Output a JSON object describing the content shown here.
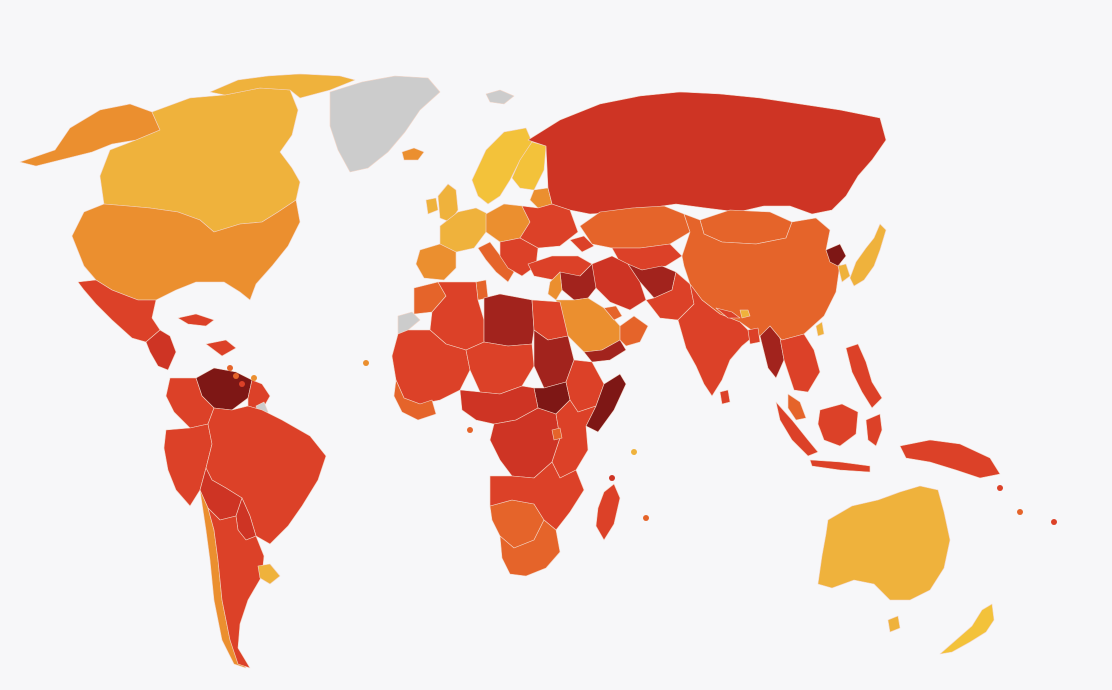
{
  "map": {
    "background": "#f7f7f9",
    "palette": {
      "very-clean": "#f3c23a",
      "clean": "#efb23c",
      "fairly-clean": "#eb8f2f",
      "moderate": "#e5642a",
      "corrupt": "#dc4128",
      "highly-corrupt": "#ce3424",
      "very-corrupt": "#a2231d",
      "extremely-corrupt": "#7e1715",
      "no-data": "#cccccc",
      "no-data-light": "#e2e2e4"
    },
    "regions": [
      {
        "id": "alaska",
        "cat": "fairly-clean"
      },
      {
        "id": "canada",
        "cat": "clean"
      },
      {
        "id": "canada-arctic",
        "cat": "clean"
      },
      {
        "id": "greenland",
        "cat": "no-data"
      },
      {
        "id": "svalbard",
        "cat": "no-data"
      },
      {
        "id": "iceland",
        "cat": "fairly-clean"
      },
      {
        "id": "usa",
        "cat": "fairly-clean"
      },
      {
        "id": "mexico",
        "cat": "corrupt"
      },
      {
        "id": "central-america",
        "cat": "highly-corrupt"
      },
      {
        "id": "cuba",
        "cat": "corrupt"
      },
      {
        "id": "hispaniola",
        "cat": "corrupt"
      },
      {
        "id": "venezuela",
        "cat": "extremely-corrupt"
      },
      {
        "id": "colombia",
        "cat": "corrupt"
      },
      {
        "id": "guianas",
        "cat": "corrupt"
      },
      {
        "id": "french-guiana",
        "cat": "no-data"
      },
      {
        "id": "brazil",
        "cat": "corrupt"
      },
      {
        "id": "peru-ecuador",
        "cat": "corrupt"
      },
      {
        "id": "bolivia",
        "cat": "highly-corrupt"
      },
      {
        "id": "paraguay",
        "cat": "highly-corrupt"
      },
      {
        "id": "chile",
        "cat": "fairly-clean"
      },
      {
        "id": "argentina",
        "cat": "corrupt"
      },
      {
        "id": "uruguay",
        "cat": "clean"
      },
      {
        "id": "scandinavia",
        "cat": "very-clean"
      },
      {
        "id": "finland",
        "cat": "very-clean"
      },
      {
        "id": "uk",
        "cat": "clean"
      },
      {
        "id": "ireland",
        "cat": "clean"
      },
      {
        "id": "west-europe",
        "cat": "clean"
      },
      {
        "id": "iberia",
        "cat": "fairly-clean"
      },
      {
        "id": "italy",
        "cat": "moderate"
      },
      {
        "id": "central-europe",
        "cat": "fairly-clean"
      },
      {
        "id": "east-europe",
        "cat": "corrupt"
      },
      {
        "id": "balkans",
        "cat": "corrupt"
      },
      {
        "id": "baltics",
        "cat": "fairly-clean"
      },
      {
        "id": "russia",
        "cat": "highly-corrupt"
      },
      {
        "id": "kazakhstan",
        "cat": "moderate"
      },
      {
        "id": "central-asia",
        "cat": "corrupt"
      },
      {
        "id": "turkey",
        "cat": "corrupt"
      },
      {
        "id": "caucasus",
        "cat": "corrupt"
      },
      {
        "id": "mongolia",
        "cat": "moderate"
      },
      {
        "id": "china",
        "cat": "moderate"
      },
      {
        "id": "north-korea",
        "cat": "extremely-corrupt"
      },
      {
        "id": "korea",
        "cat": "clean"
      },
      {
        "id": "japan",
        "cat": "clean"
      },
      {
        "id": "taiwan",
        "cat": "clean"
      },
      {
        "id": "iran",
        "cat": "highly-corrupt"
      },
      {
        "id": "afghanistan",
        "cat": "very-corrupt"
      },
      {
        "id": "pakistan",
        "cat": "corrupt"
      },
      {
        "id": "iraq-syria",
        "cat": "very-corrupt"
      },
      {
        "id": "levant",
        "cat": "fairly-clean"
      },
      {
        "id": "saudi",
        "cat": "fairly-clean"
      },
      {
        "id": "gulf-states",
        "cat": "moderate"
      },
      {
        "id": "oman",
        "cat": "moderate"
      },
      {
        "id": "yemen",
        "cat": "very-corrupt"
      },
      {
        "id": "india",
        "cat": "corrupt"
      },
      {
        "id": "sri-lanka",
        "cat": "corrupt"
      },
      {
        "id": "nepal",
        "cat": "corrupt"
      },
      {
        "id": "bhutan",
        "cat": "clean"
      },
      {
        "id": "bangladesh",
        "cat": "corrupt"
      },
      {
        "id": "myanmar",
        "cat": "very-corrupt"
      },
      {
        "id": "indochina",
        "cat": "corrupt"
      },
      {
        "id": "malaysia",
        "cat": "moderate"
      },
      {
        "id": "sumatra",
        "cat": "corrupt"
      },
      {
        "id": "java",
        "cat": "corrupt"
      },
      {
        "id": "borneo",
        "cat": "corrupt"
      },
      {
        "id": "sulawesi",
        "cat": "corrupt"
      },
      {
        "id": "philippines",
        "cat": "corrupt"
      },
      {
        "id": "new-guinea",
        "cat": "corrupt"
      },
      {
        "id": "australia",
        "cat": "clean"
      },
      {
        "id": "tasmania",
        "cat": "clean"
      },
      {
        "id": "new-zealand",
        "cat": "very-clean"
      },
      {
        "id": "western-sahara",
        "cat": "no-data"
      },
      {
        "id": "morocco",
        "cat": "moderate"
      },
      {
        "id": "algeria",
        "cat": "corrupt"
      },
      {
        "id": "tunisia",
        "cat": "moderate"
      },
      {
        "id": "libya",
        "cat": "very-corrupt"
      },
      {
        "id": "egypt",
        "cat": "corrupt"
      },
      {
        "id": "west-africa",
        "cat": "corrupt"
      },
      {
        "id": "senegal-ghana",
        "cat": "moderate"
      },
      {
        "id": "niger-chad",
        "cat": "corrupt"
      },
      {
        "id": "sudan",
        "cat": "very-corrupt"
      },
      {
        "id": "south-sudan",
        "cat": "extremely-corrupt"
      },
      {
        "id": "eritrea-ethiopia",
        "cat": "corrupt"
      },
      {
        "id": "somalia",
        "cat": "extremely-corrupt"
      },
      {
        "id": "central-africa",
        "cat": "highly-corrupt"
      },
      {
        "id": "drc",
        "cat": "highly-corrupt"
      },
      {
        "id": "east-africa",
        "cat": "corrupt"
      },
      {
        "id": "rwanda",
        "cat": "moderate"
      },
      {
        "id": "southern-africa",
        "cat": "corrupt"
      },
      {
        "id": "namibia-botswana",
        "cat": "moderate"
      },
      {
        "id": "south-africa",
        "cat": "moderate"
      },
      {
        "id": "madagascar",
        "cat": "corrupt"
      }
    ],
    "markers": [
      {
        "id": "cabo-verde",
        "cat": "fairly-clean"
      },
      {
        "id": "sao-tome",
        "cat": "moderate"
      },
      {
        "id": "seychelles",
        "cat": "clean"
      },
      {
        "id": "mauritius",
        "cat": "moderate"
      },
      {
        "id": "barbados",
        "cat": "fairly-clean"
      },
      {
        "id": "trinidad",
        "cat": "corrupt"
      },
      {
        "id": "lesser-antilles-1",
        "cat": "moderate"
      },
      {
        "id": "lesser-antilles-2",
        "cat": "moderate"
      },
      {
        "id": "comoros",
        "cat": "highly-corrupt"
      },
      {
        "id": "vanuatu",
        "cat": "moderate"
      },
      {
        "id": "solomons",
        "cat": "corrupt"
      },
      {
        "id": "fiji",
        "cat": "corrupt"
      }
    ]
  }
}
